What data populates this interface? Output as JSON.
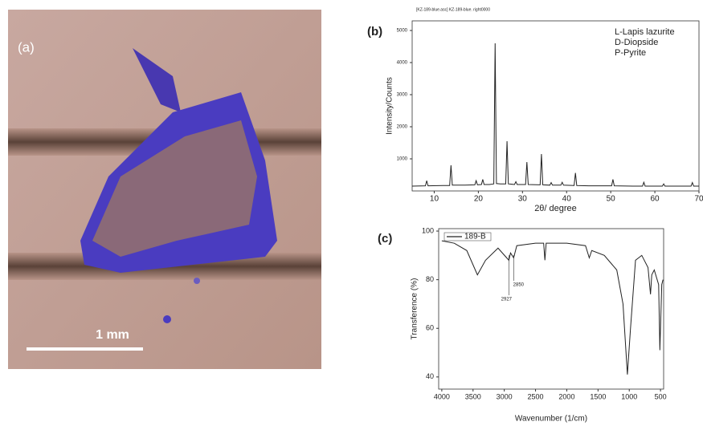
{
  "photo": {
    "label": "(a)",
    "scale_bar": "1 mm"
  },
  "chart_data": [
    {
      "type": "line",
      "panel": "(b)",
      "title": "[KZ-189-blue.asc] KZ-189-blue. right0000",
      "x_label": "2θ/ degree",
      "y_label": "Intensity/Counts",
      "annotations": [
        "L-Lapis lazurite",
        "D-Diopside",
        "P-Pyrite"
      ],
      "x": [
        5,
        8,
        8.3,
        8.6,
        12,
        13.5,
        13.8,
        14.1,
        17,
        19.2,
        19.5,
        19.8,
        20.7,
        21,
        21.3,
        22.5,
        23.5,
        23.8,
        24.1,
        25,
        26.2,
        26.5,
        26.8,
        28.2,
        28.5,
        28.8,
        30.7,
        31,
        31.3,
        34,
        34.3,
        34.6,
        36.2,
        36.5,
        36.8,
        38.7,
        39,
        39.3,
        41.7,
        42,
        42.3,
        45,
        50.2,
        50.5,
        50.8,
        55,
        57.2,
        57.5,
        57.8,
        61.7,
        62,
        62.3,
        65,
        68.2,
        68.5,
        68.8,
        70
      ],
      "series": [
        {
          "color": "#222222",
          "values": [
            150,
            160,
            320,
            160,
            170,
            170,
            800,
            180,
            180,
            190,
            320,
            190,
            200,
            360,
            200,
            200,
            220,
            4600,
            230,
            220,
            220,
            1550,
            220,
            200,
            290,
            200,
            200,
            900,
            200,
            190,
            1150,
            190,
            180,
            260,
            180,
            180,
            270,
            180,
            170,
            560,
            170,
            160,
            160,
            360,
            160,
            150,
            150,
            270,
            150,
            150,
            220,
            150,
            150,
            150,
            260,
            150,
            150
          ]
        }
      ],
      "xlim": [
        5,
        70
      ],
      "ylim": [
        0,
        5300
      ],
      "xticks": [
        10,
        20,
        30,
        40,
        50,
        60,
        70
      ],
      "yticks": [
        1000,
        2000,
        3000,
        4000,
        5000
      ]
    },
    {
      "type": "line",
      "panel": "(c)",
      "x_label": "Wavenumber (1/cm)",
      "y_label": "Transference (%)",
      "annotations": [
        "2927",
        "2850"
      ],
      "x": [
        4000,
        3800,
        3600,
        3430,
        3300,
        3100,
        2927,
        2900,
        2850,
        2800,
        2500,
        2370,
        2350,
        2330,
        2000,
        1700,
        1640,
        1600,
        1400,
        1200,
        1100,
        1030,
        980,
        900,
        800,
        700,
        660,
        640,
        600,
        530,
        510,
        480,
        460
      ],
      "series": [
        {
          "name": "189-B",
          "color": "#222222",
          "values": [
            96,
            95,
            92,
            82,
            88,
            93,
            88,
            91,
            89,
            94,
            95,
            95,
            88,
            95,
            95,
            94,
            89,
            92,
            90,
            84,
            70,
            41,
            60,
            88,
            90,
            85,
            74,
            82,
            84,
            78,
            51,
            78,
            80
          ]
        }
      ],
      "xlim": [
        4050,
        450
      ],
      "ylim": [
        35,
        101
      ],
      "xticks": [
        4000,
        3500,
        3000,
        2500,
        2000,
        1500,
        1000,
        500
      ],
      "yticks": [
        40,
        60,
        80,
        100
      ]
    }
  ]
}
